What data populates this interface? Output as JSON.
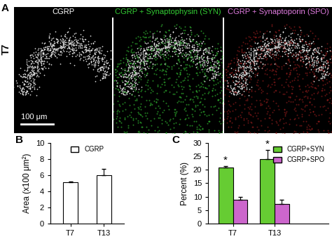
{
  "image_panel": {
    "label": "A",
    "row_label": "T7",
    "columns": [
      {
        "title": "CGRP",
        "color": "#ffffff"
      },
      {
        "title": "CGRP + Synaptophysin (SYN)",
        "color": "#33cc33"
      },
      {
        "title": "CGRP + Synaptoporin (SPO)",
        "color": "#e07be0"
      }
    ],
    "scale_bar": "100 μm"
  },
  "chart_data": [
    {
      "panel": "B",
      "type": "bar",
      "y_label": "Area (x100 μm²)",
      "categories": [
        "T7",
        "T13"
      ],
      "series": [
        {
          "name": "CGRP",
          "color": "#ffffff",
          "values": [
            5.15,
            6.0
          ],
          "errors": [
            0.1,
            0.75
          ]
        }
      ],
      "ylim": [
        0,
        10
      ],
      "yticks": [
        0,
        2,
        4,
        6,
        8,
        10
      ],
      "legend": "upper center"
    },
    {
      "panel": "C",
      "type": "bar",
      "y_label": "Percent (%)",
      "categories": [
        "T7",
        "T13"
      ],
      "series": [
        {
          "name": "CGRP+SYN",
          "color": "#66cc33",
          "values": [
            20.7,
            24.0
          ],
          "errors": [
            0.7,
            3.3
          ]
        },
        {
          "name": "CGRP+SPO",
          "color": "#cc66cc",
          "values": [
            8.9,
            7.4
          ],
          "errors": [
            1.0,
            1.4
          ]
        }
      ],
      "ylim": [
        0,
        30
      ],
      "yticks": [
        0,
        5,
        10,
        15,
        20,
        25,
        30
      ],
      "legend": "upper right",
      "annotations": [
        {
          "text": "*",
          "category": "T7",
          "series": "CGRP+SYN"
        },
        {
          "text": "*",
          "category": "T13",
          "series": "CGRP+SYN"
        }
      ]
    }
  ]
}
